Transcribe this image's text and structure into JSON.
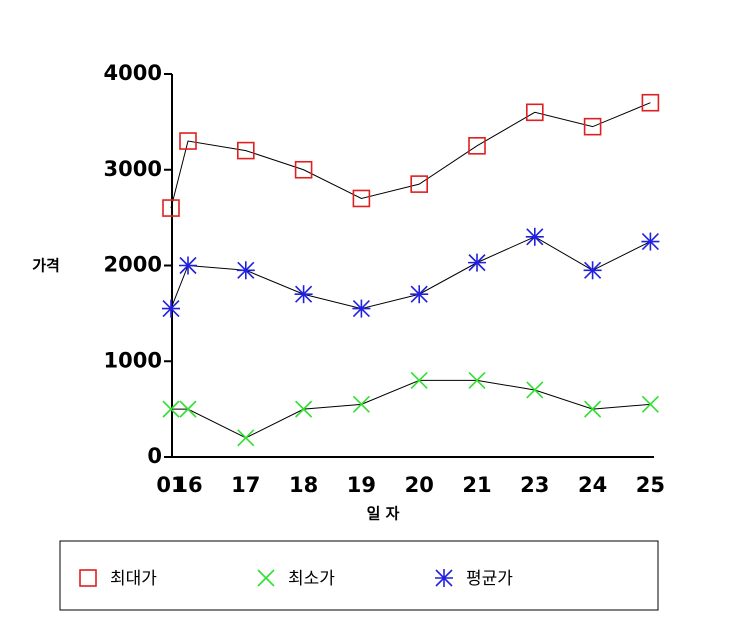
{
  "chart_data": {
    "type": "line",
    "x_label": "일 자",
    "y_label": "가격",
    "categories": [
      "01",
      "16",
      "17",
      "18",
      "19",
      "20",
      "21",
      "23",
      "24",
      "25"
    ],
    "series": [
      {
        "name": "최대가",
        "color": "#e02020",
        "marker": "square",
        "values": [
          2600,
          3300,
          3200,
          3000,
          2700,
          2850,
          3250,
          3600,
          3450,
          3700
        ]
      },
      {
        "name": "최소가",
        "color": "#30e030",
        "marker": "x",
        "values": [
          500,
          500,
          200,
          500,
          550,
          800,
          800,
          700,
          500,
          550
        ]
      },
      {
        "name": "평균가",
        "color": "#2020e0",
        "marker": "asterisk",
        "values": [
          1550,
          2000,
          1950,
          1700,
          1550,
          1700,
          2030,
          2300,
          1950,
          2250
        ]
      }
    ],
    "ylim": [
      0,
      4000
    ],
    "yticks": [
      0,
      1000,
      2000,
      3000,
      4000
    ],
    "grid": false,
    "legend": "bottom"
  }
}
